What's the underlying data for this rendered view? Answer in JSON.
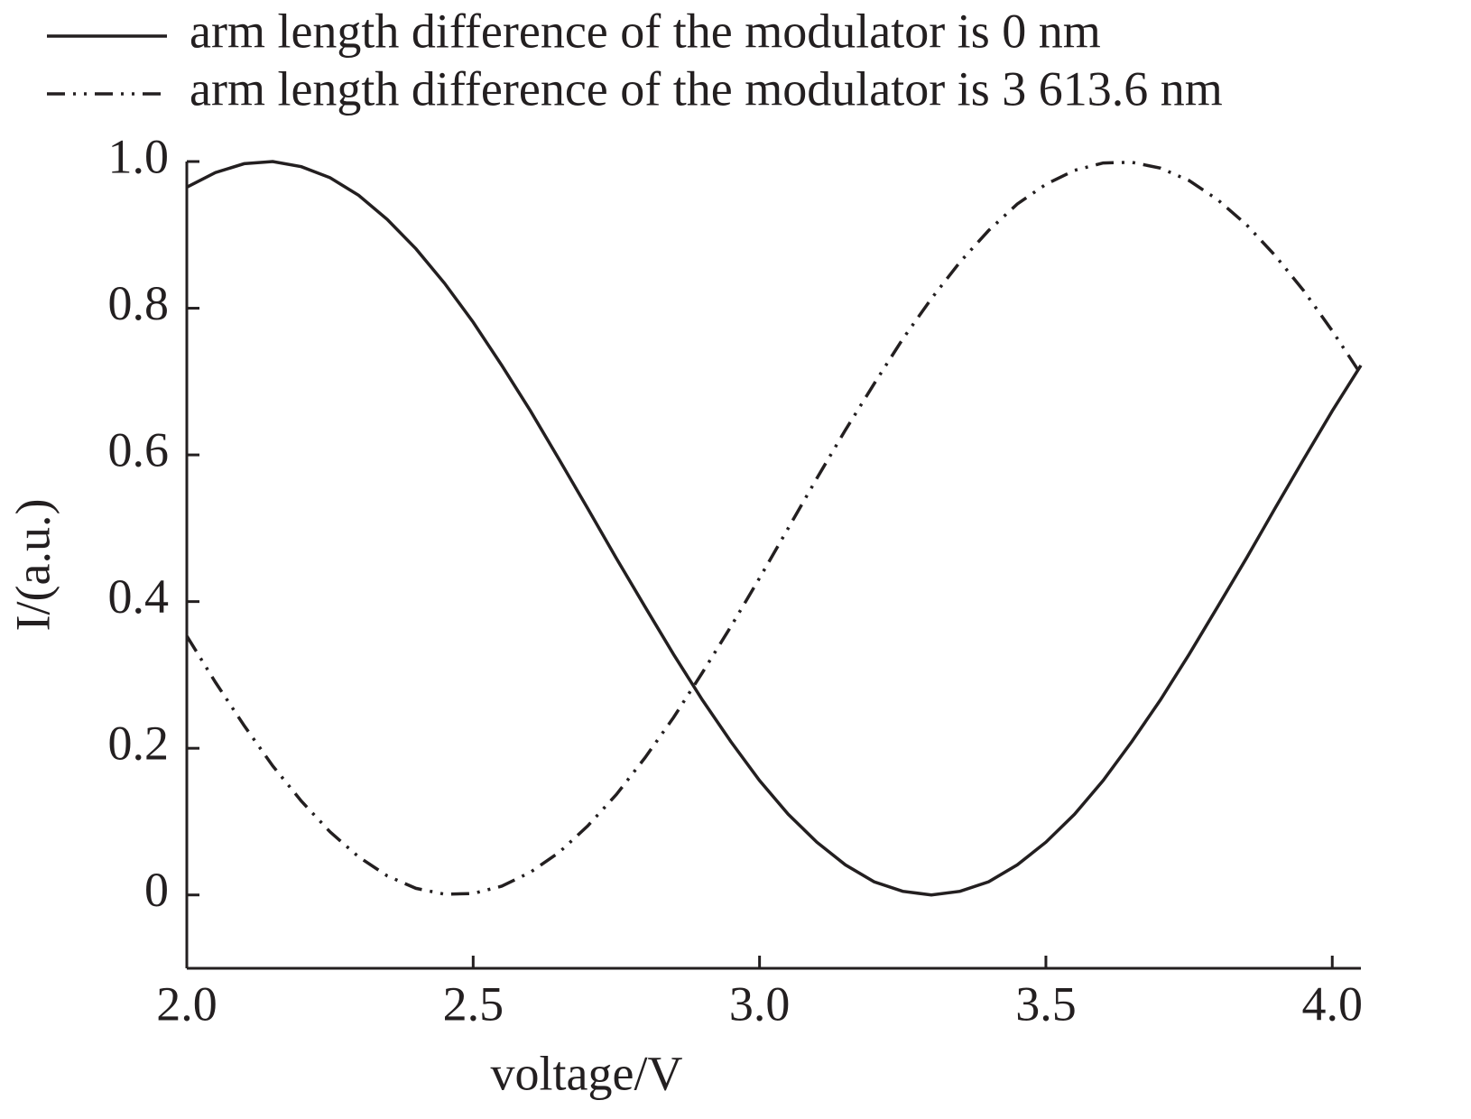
{
  "chart_data": {
    "type": "line",
    "x_label": "voltage/V",
    "y_label": "I/(a.u.)",
    "x": [
      2.0,
      2.05,
      2.1,
      2.15,
      2.2,
      2.25,
      2.3,
      2.35,
      2.4,
      2.45,
      2.5,
      2.55,
      2.6,
      2.65,
      2.7,
      2.75,
      2.8,
      2.85,
      2.9,
      2.95,
      3.0,
      3.05,
      3.1,
      3.15,
      3.2,
      3.25,
      3.3,
      3.35,
      3.4,
      3.45,
      3.5,
      3.55,
      3.6,
      3.65,
      3.7,
      3.75,
      3.8,
      3.85,
      3.9,
      3.95,
      4.0,
      4.05
    ],
    "series": [
      {
        "name": "arm length difference of the modulator is 0 nm",
        "color": "#231f20",
        "dash": "solid",
        "values": [
          0.965,
          0.985,
          0.997,
          1.0,
          0.993,
          0.978,
          0.954,
          0.921,
          0.881,
          0.834,
          0.781,
          0.722,
          0.66,
          0.594,
          0.527,
          0.459,
          0.393,
          0.328,
          0.266,
          0.209,
          0.156,
          0.11,
          0.072,
          0.041,
          0.018,
          0.005,
          0,
          0.005,
          0.018,
          0.041,
          0.072,
          0.11,
          0.156,
          0.209,
          0.266,
          0.328,
          0.393,
          0.459,
          0.527,
          0.594,
          0.66,
          0.722
        ]
      },
      {
        "name": "arm length difference of the modulator is 3 613.6 nm",
        "color": "#231f20",
        "dash": "dash-dot-dot",
        "values": [
          0.353,
          0.29,
          0.231,
          0.176,
          0.128,
          0.086,
          0.052,
          0.026,
          0.009,
          0.001,
          0.002,
          0.012,
          0.031,
          0.058,
          0.094,
          0.137,
          0.187,
          0.242,
          0.303,
          0.366,
          0.432,
          0.5,
          0.568,
          0.634,
          0.697,
          0.758,
          0.813,
          0.863,
          0.906,
          0.942,
          0.969,
          0.988,
          0.998,
          0.999,
          0.991,
          0.974,
          0.948,
          0.914,
          0.872,
          0.824,
          0.769,
          0.71
        ]
      }
    ],
    "xlim": [
      2.0,
      4.05
    ],
    "ylim": [
      -0.1,
      1.0
    ],
    "xticks": [
      {
        "value": 2,
        "label": "2.0"
      },
      2.5,
      {
        "value": 3,
        "label": "3.0"
      },
      3.5,
      {
        "value": 4,
        "label": "4.0"
      }
    ],
    "yticks": [
      0,
      0.2,
      0.4,
      0.6,
      0.8,
      {
        "value": 1,
        "label": "1.0"
      }
    ],
    "grid": false,
    "legend": "top-left"
  }
}
